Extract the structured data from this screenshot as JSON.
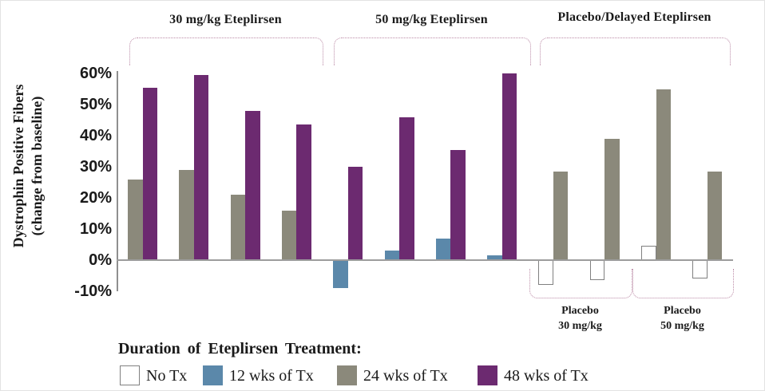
{
  "y_axis": {
    "title_line1": "Dystrophin Positive Fibers",
    "title_line2": "(change from baseline)",
    "tick_labels": [
      "60%",
      "50%",
      "40%",
      "30%",
      "20%",
      "10%",
      "0%",
      "-10%"
    ]
  },
  "legend": {
    "title": "Duration of Eteplirsen Treatment:",
    "items": [
      {
        "label": "No Tx",
        "color": "#ffffff"
      },
      {
        "label": "12 wks of Tx",
        "color": "#5b88aa"
      },
      {
        "label": "24 wks of Tx",
        "color": "#8b897b"
      },
      {
        "label": "48 wks of Tx",
        "color": "#6c2a70"
      }
    ]
  },
  "chart_data": {
    "type": "bar",
    "title": "",
    "ylabel": "Dystrophin Positive Fibers (change from baseline)",
    "y_unit": "%",
    "ylim": [
      -10,
      60
    ],
    "yticks": [
      60,
      50,
      40,
      30,
      20,
      10,
      0,
      -10
    ],
    "grid": false,
    "legend_position": "bottom",
    "series_names": [
      "No Tx",
      "12 wks of Tx",
      "24 wks of Tx",
      "48 wks of Tx"
    ],
    "series_colors": {
      "No Tx": "#ffffff",
      "12 wks of Tx": "#5b88aa",
      "24 wks of Tx": "#8b897b",
      "48 wks of Tx": "#6c2a70"
    },
    "groups": [
      {
        "label": "30 mg/kg Eteplirsen",
        "pairs": [
          [
            {
              "series": "24 wks of Tx",
              "value": 26
            },
            {
              "series": "48 wks of Tx",
              "value": 55.5
            }
          ],
          [
            {
              "series": "24 wks of Tx",
              "value": 29
            },
            {
              "series": "48 wks of Tx",
              "value": 59.5
            }
          ],
          [
            {
              "series": "24 wks of Tx",
              "value": 21
            },
            {
              "series": "48 wks of Tx",
              "value": 48
            }
          ],
          [
            {
              "series": "24 wks of Tx",
              "value": 16
            },
            {
              "series": "48 wks of Tx",
              "value": 43.5
            }
          ]
        ]
      },
      {
        "label": "50 mg/kg Eteplirsen",
        "pairs": [
          [
            {
              "series": "12 wks of Tx",
              "value": -9
            },
            {
              "series": "48 wks of Tx",
              "value": 30
            }
          ],
          [
            {
              "series": "12 wks of Tx",
              "value": 3
            },
            {
              "series": "48 wks of Tx",
              "value": 46
            }
          ],
          [
            {
              "series": "12 wks of Tx",
              "value": 7
            },
            {
              "series": "48 wks of Tx",
              "value": 35.5
            }
          ],
          [
            {
              "series": "12 wks of Tx",
              "value": 1.5
            },
            {
              "series": "48 wks of Tx",
              "value": 60
            }
          ]
        ]
      },
      {
        "label": "Placebo/Delayed Eteplirsen",
        "pairs": [
          [
            {
              "series": "No Tx",
              "value": -8
            },
            {
              "series": "24 wks of Tx",
              "value": 28.5
            }
          ],
          [
            {
              "series": "No Tx",
              "value": -6.5
            },
            {
              "series": "24 wks of Tx",
              "value": 39
            }
          ],
          [
            {
              "series": "No Tx",
              "value": 4.5
            },
            {
              "series": "24 wks of Tx",
              "value": 55
            }
          ],
          [
            {
              "series": "No Tx",
              "value": -6
            },
            {
              "series": "24 wks of Tx",
              "value": 28.5
            }
          ]
        ]
      }
    ],
    "sub_brackets": [
      {
        "line1": "Placebo",
        "line2": "30 mg/kg"
      },
      {
        "line1": "Placebo",
        "line2": "50 mg/kg"
      }
    ]
  }
}
